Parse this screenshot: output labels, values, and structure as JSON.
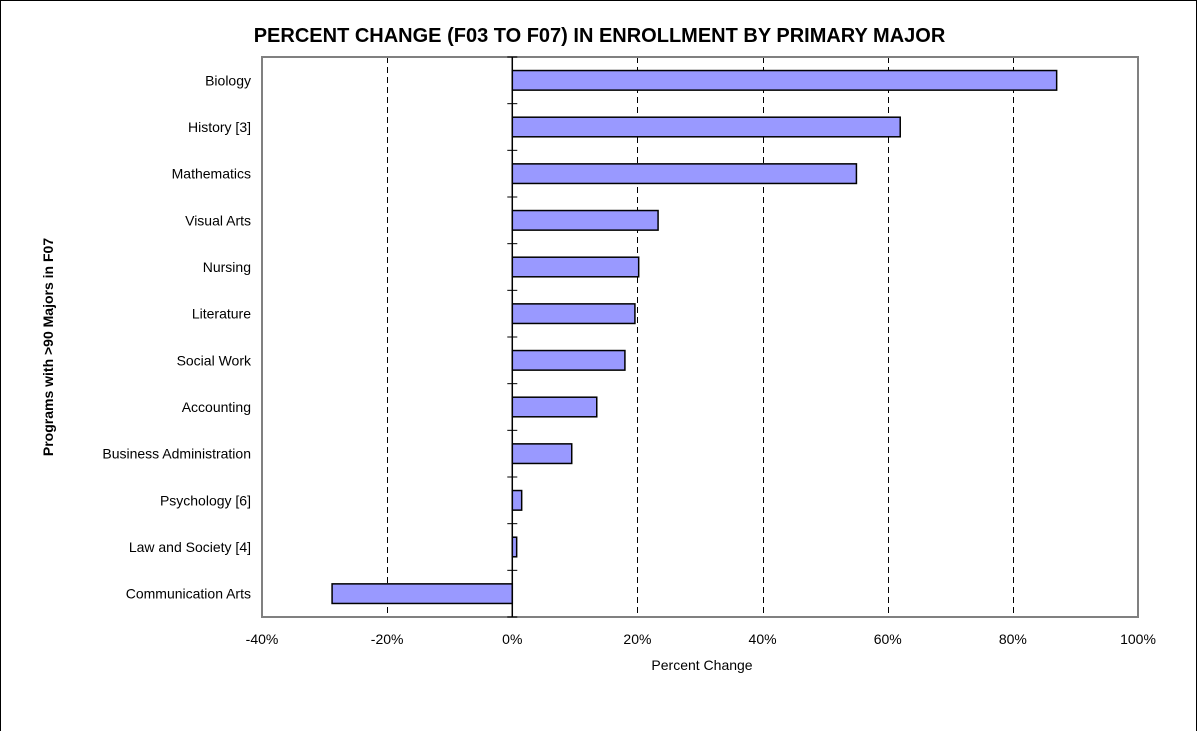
{
  "chart_data": {
    "type": "bar",
    "orientation": "horizontal",
    "title": "PERCENT CHANGE (F03 TO F07) IN ENROLLMENT BY PRIMARY MAJOR",
    "xlabel": "Percent Change",
    "ylabel": "Programs with >90 Majors in F07",
    "categories": [
      "Biology",
      "History [3]",
      "Mathematics",
      "Visual Arts",
      "Nursing",
      "Literature",
      "Social Work",
      "Accounting",
      "Business Administration",
      "Psychology [6]",
      "Law and Society [4]",
      "Communication Arts"
    ],
    "values": [
      87,
      62,
      55,
      23.3,
      20.2,
      19.6,
      18,
      13.5,
      9.5,
      1.5,
      0.7,
      -28.8
    ],
    "xlim": [
      -40,
      100
    ],
    "xticks": [
      -40,
      -20,
      0,
      20,
      40,
      60,
      80,
      100
    ],
    "xtick_labels": [
      "-40%",
      "-20%",
      "0%",
      "20%",
      "40%",
      "60%",
      "80%",
      "100%"
    ],
    "grid": "vertical dashed",
    "legend": "none",
    "colors": {
      "bar_fill": "#9999FF",
      "bar_stroke": "#000000",
      "plot_border": "#808080",
      "grid": "#000000"
    }
  }
}
